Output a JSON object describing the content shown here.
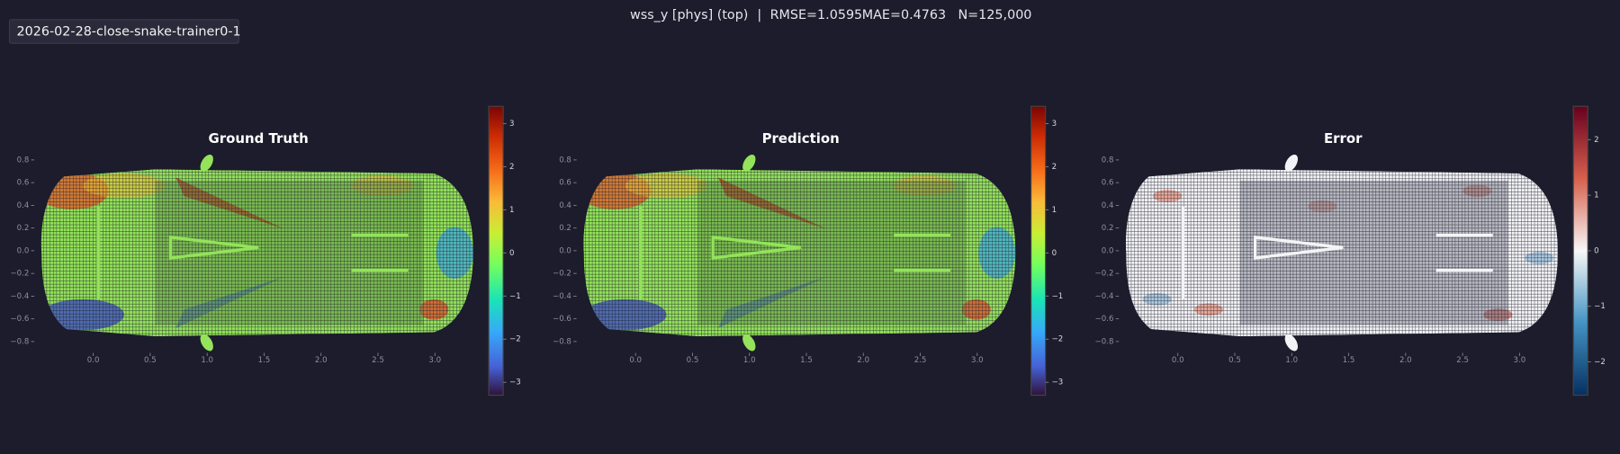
{
  "header": {
    "tag": "2026-02-28-close-snake-trainer0-1",
    "title": "wss_y [phys] (top)",
    "separator": "|",
    "metrics": [
      "RMSE=1.0595",
      "MAE=0.4763",
      "N=125,000"
    ]
  },
  "chart_data": [
    {
      "type": "scatter",
      "title": "Ground Truth",
      "xlim": [
        -0.5,
        3.4
      ],
      "ylim": [
        -0.9,
        0.9
      ],
      "xticks": [
        {
          "value": 0,
          "label": "0.0"
        },
        0.5,
        {
          "value": 1,
          "label": "1.0"
        },
        1.5,
        {
          "value": 2,
          "label": "2.0"
        },
        2.5,
        {
          "value": 3,
          "label": "3.0"
        }
      ],
      "yticks": [
        {
          "value": -0.8,
          "label": "−0.8"
        },
        {
          "value": -0.6,
          "label": "−0.6"
        },
        {
          "value": -0.4,
          "label": "−0.4"
        },
        {
          "value": -0.2,
          "label": "−0.2"
        },
        {
          "value": 0,
          "label": "0.0"
        },
        0.2,
        0.4,
        0.6,
        0.8
      ],
      "colorbar": {
        "colormap": "turbo",
        "lim": [
          -3.3,
          3.4
        ],
        "ticks": [
          {
            "value": -3,
            "label": "−3"
          },
          {
            "value": -2,
            "label": "−2"
          },
          {
            "value": -1,
            "label": "−1"
          },
          0,
          1,
          2,
          3
        ]
      }
    },
    {
      "type": "scatter",
      "title": "Prediction",
      "xlim": [
        -0.5,
        3.4
      ],
      "ylim": [
        -0.9,
        0.9
      ],
      "xticks": [
        {
          "value": 0,
          "label": "0.0"
        },
        0.5,
        {
          "value": 1,
          "label": "1.0"
        },
        1.5,
        {
          "value": 2,
          "label": "2.0"
        },
        2.5,
        {
          "value": 3,
          "label": "3.0"
        }
      ],
      "yticks": [
        {
          "value": -0.8,
          "label": "−0.8"
        },
        {
          "value": -0.6,
          "label": "−0.6"
        },
        {
          "value": -0.4,
          "label": "−0.4"
        },
        {
          "value": -0.2,
          "label": "−0.2"
        },
        {
          "value": 0,
          "label": "0.0"
        },
        0.2,
        0.4,
        0.6,
        0.8
      ],
      "colorbar": {
        "colormap": "turbo",
        "lim": [
          -3.3,
          3.4
        ],
        "ticks": [
          {
            "value": -3,
            "label": "−3"
          },
          {
            "value": -2,
            "label": "−2"
          },
          {
            "value": -1,
            "label": "−1"
          },
          0,
          1,
          2,
          3
        ]
      }
    },
    {
      "type": "scatter",
      "title": "Error",
      "xlim": [
        -0.5,
        3.4
      ],
      "ylim": [
        -0.9,
        0.9
      ],
      "xticks": [
        {
          "value": 0,
          "label": "0.0"
        },
        0.5,
        {
          "value": 1,
          "label": "1.0"
        },
        1.5,
        {
          "value": 2,
          "label": "2.0"
        },
        2.5,
        {
          "value": 3,
          "label": "3.0"
        }
      ],
      "yticks": [
        {
          "value": -0.8,
          "label": "−0.8"
        },
        {
          "value": -0.6,
          "label": "−0.6"
        },
        {
          "value": -0.4,
          "label": "−0.4"
        },
        {
          "value": -0.2,
          "label": "−0.2"
        },
        {
          "value": 0,
          "label": "0.0"
        },
        0.2,
        0.4,
        0.6,
        0.8
      ],
      "colorbar": {
        "colormap": "RdBu_r",
        "lim": [
          -2.6,
          2.6
        ],
        "ticks": [
          {
            "value": -2,
            "label": "−2"
          },
          {
            "value": -1,
            "label": "−1"
          },
          0,
          1,
          2
        ]
      }
    }
  ]
}
